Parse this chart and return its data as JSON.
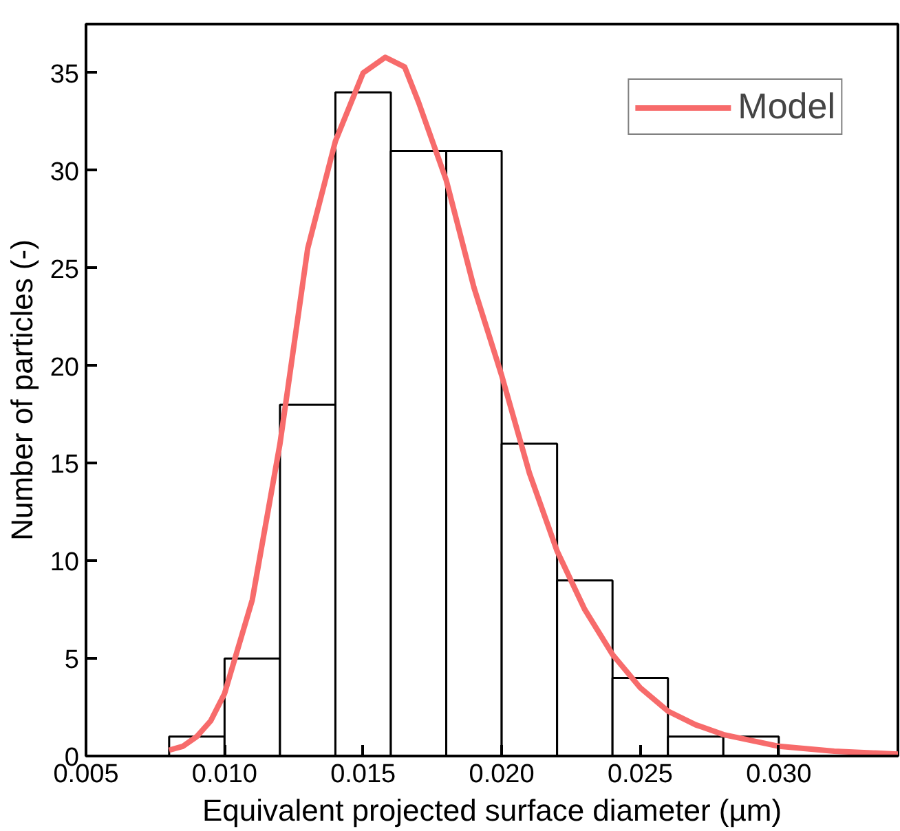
{
  "chart_data": {
    "type": "histogram",
    "xlabel": "Equivalent projected surface diameter (µm)",
    "ylabel": "Number of particles (-)",
    "bins": [
      0.008,
      0.01,
      0.012,
      0.014,
      0.016,
      0.018,
      0.02,
      0.022,
      0.024,
      0.026,
      0.028,
      0.03
    ],
    "values": [
      1,
      5,
      18,
      34,
      31,
      31,
      16,
      9,
      4,
      1,
      1
    ],
    "color": "#ffffff",
    "series": [
      {
        "type": "line",
        "name": "Model",
        "color": "#f76b6b",
        "x": [
          0.008,
          0.0085,
          0.009,
          0.0095,
          0.01,
          0.011,
          0.012,
          0.013,
          0.014,
          0.015,
          0.0158,
          0.0165,
          0.017,
          0.018,
          0.019,
          0.02,
          0.021,
          0.022,
          0.023,
          0.024,
          0.025,
          0.026,
          0.027,
          0.028,
          0.029,
          0.03,
          0.032,
          0.0343
        ],
        "values": [
          0.3,
          0.5,
          1.0,
          1.8,
          3.2,
          8.0,
          16.0,
          26.0,
          31.5,
          35.0,
          35.8,
          35.3,
          33.5,
          29.5,
          24.0,
          19.5,
          14.5,
          10.5,
          7.5,
          5.2,
          3.5,
          2.3,
          1.6,
          1.1,
          0.8,
          0.5,
          0.25,
          0.1
        ]
      }
    ],
    "xlim": [
      0.005,
      0.0343
    ],
    "ylim": [
      0,
      37.5
    ],
    "xticks": [
      0.005,
      {
        "value": 0.01,
        "label": "0.010"
      },
      0.015,
      {
        "value": 0.02,
        "label": "0.020"
      },
      0.025,
      {
        "value": 0.03,
        "label": "0.030"
      }
    ],
    "yticks": [
      0,
      5,
      10,
      15,
      20,
      25,
      30,
      35
    ],
    "grid": false,
    "legend": "top right",
    "line_style": "solid",
    "marker": "none"
  }
}
